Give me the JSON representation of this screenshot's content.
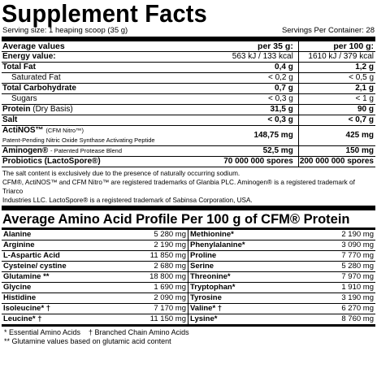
{
  "title": "Supplement Facts",
  "serving_size": "Serving size: 1 heaping scoop (35 g)",
  "servings_per_container": "Servings Per Container: 28",
  "table_header": {
    "label": "Average values",
    "col1": "per 35 g:",
    "col2": "per 100 g:"
  },
  "rows": [
    {
      "label": "Energy value:",
      "v1": "563 kJ / 133 kcal",
      "v2": "1610 kJ / 379 kcal"
    },
    {
      "label": "Total Fat",
      "v1": "0,4 g",
      "v2": "1,2 g"
    },
    {
      "label": "Saturated Fat",
      "v1": "< 0,2 g",
      "v2": "< 0,5 g"
    },
    {
      "label": "Total Carbohydrate",
      "v1": "0,7 g",
      "v2": "2,1 g"
    },
    {
      "label": "Sugars",
      "v1": "< 0,3 g",
      "v2": "< 1 g"
    },
    {
      "label": "Protein",
      "label_suffix": "(Dry Basis)",
      "v1": "31,5 g",
      "v2": "90 g"
    },
    {
      "label": "Salt",
      "v1": "< 0,3 g",
      "v2": "< 0,7 g"
    },
    {
      "label": "ActiNOS™",
      "label_suffix": "(CFM Nitro™)",
      "label_sub": "Patent-Pending Nitric Oxide Synthase Activating Peptide",
      "v1": "148,75 mg",
      "v2": "425 mg"
    },
    {
      "label": "Aminogen®",
      "label_suffix": "- Patented Protease Blend",
      "v1": "52,5 mg",
      "v2": "150 mg"
    },
    {
      "label": "Probiotics (LactoSpore®)",
      "v1": "70 000 000 spores",
      "v2": "200 000 000 spores"
    }
  ],
  "notes": [
    "The salt content is exclusively due to the presence of naturally occurring sodium.",
    "CFM®, ActiNOS™ and CFM Nitro™ are registered trademarks of Glanbia PLC. Aminogen® is a registered trademark of Triarco",
    "Industries LLC. LactoSpore® is a registered trademark of Sabinsa Corporation, USA."
  ],
  "amino_title": "Average Amino Acid Profile Per 100 g of CFM® Protein",
  "amino_left": [
    {
      "name": "Alanine",
      "value": "5 280 mg"
    },
    {
      "name": "Arginine",
      "value": "2 190 mg"
    },
    {
      "name": "L-Aspartic Acid",
      "value": "11 850 mg"
    },
    {
      "name": "Cysteine/ cystine",
      "value": "2 680 mg"
    },
    {
      "name": "Glutamine **",
      "value": "18 800 mg"
    },
    {
      "name": "Glycine",
      "value": "1 690 mg"
    },
    {
      "name": "Histidine",
      "value": "2 090 mg"
    },
    {
      "name": "Isoleucine* †",
      "value": "7 170 mg"
    },
    {
      "name": "Leucine* †",
      "value": "11 150 mg"
    }
  ],
  "amino_right": [
    {
      "name": "Methionine*",
      "value": "2 190 mg"
    },
    {
      "name": "Phenylalanine*",
      "value": "3 090 mg"
    },
    {
      "name": "Proline",
      "value": "7 770 mg"
    },
    {
      "name": "Serine",
      "value": "5 280 mg"
    },
    {
      "name": "Threonine*",
      "value": "7 970 mg"
    },
    {
      "name": "Tryptophan*",
      "value": "1 910 mg"
    },
    {
      "name": "Tyrosine",
      "value": "3 190 mg"
    },
    {
      "name": "Valine* †",
      "value": "6 270 mg"
    },
    {
      "name": "Lysine*",
      "value": "8 760 mg"
    }
  ],
  "footnotes": [
    "* Essential Amino Acids    † Branched Chain Amino Acids",
    "** Glutamine values based on glutamic acid content"
  ]
}
